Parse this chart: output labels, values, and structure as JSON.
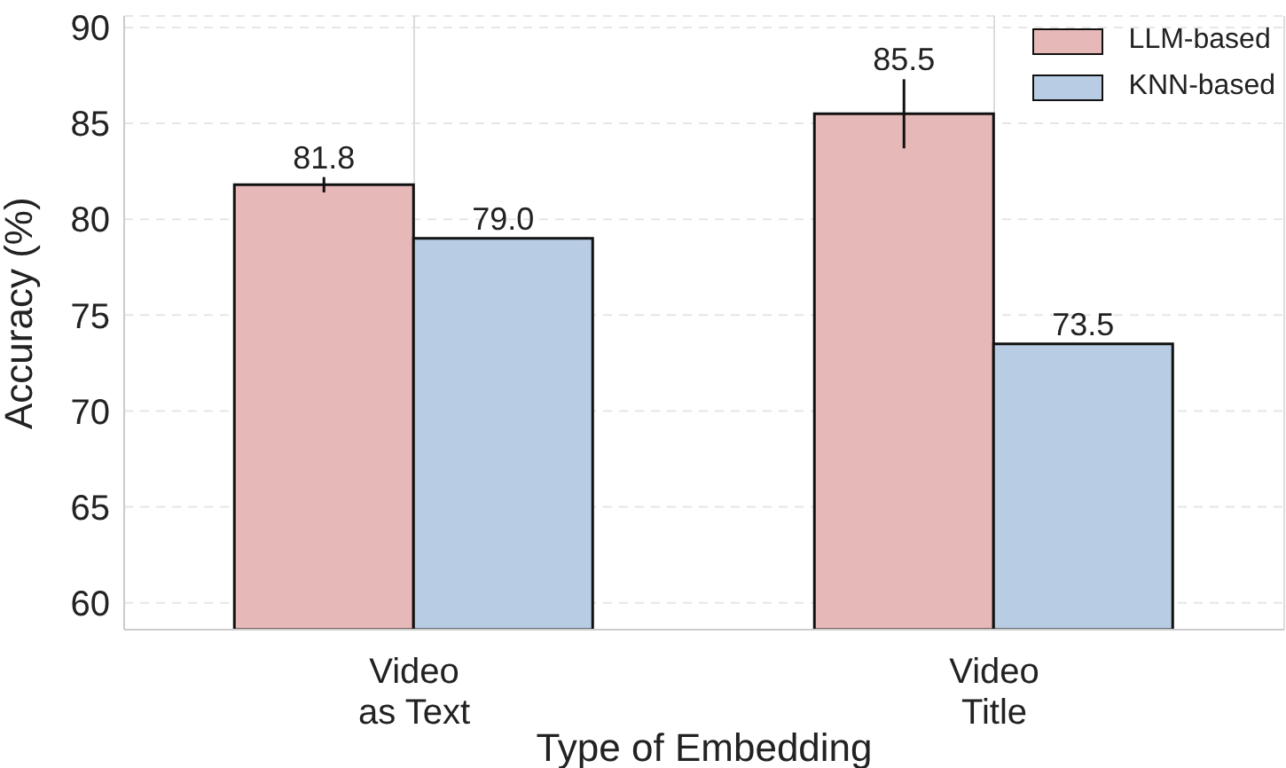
{
  "chart_data": {
    "type": "bar",
    "xlabel": "Type of Embedding",
    "ylabel": "Accuracy (%)",
    "categories": [
      "Video\nas Text",
      "Video\nTitle"
    ],
    "series": [
      {
        "name": "LLM-based",
        "color": "#e6b8b8",
        "values": [
          81.8,
          85.5
        ],
        "errors": [
          0.4,
          1.8
        ],
        "value_labels": [
          "81.8",
          "85.5"
        ]
      },
      {
        "name": "KNN-based",
        "color": "#b8cce4",
        "values": [
          79.0,
          73.5
        ],
        "value_labels": [
          "79.0",
          "73.5"
        ]
      }
    ],
    "ylim": [
      58.6,
      90.6
    ],
    "yticks": [
      60,
      65,
      70,
      75,
      80,
      85,
      90
    ],
    "grid": true,
    "legend": "top right"
  }
}
